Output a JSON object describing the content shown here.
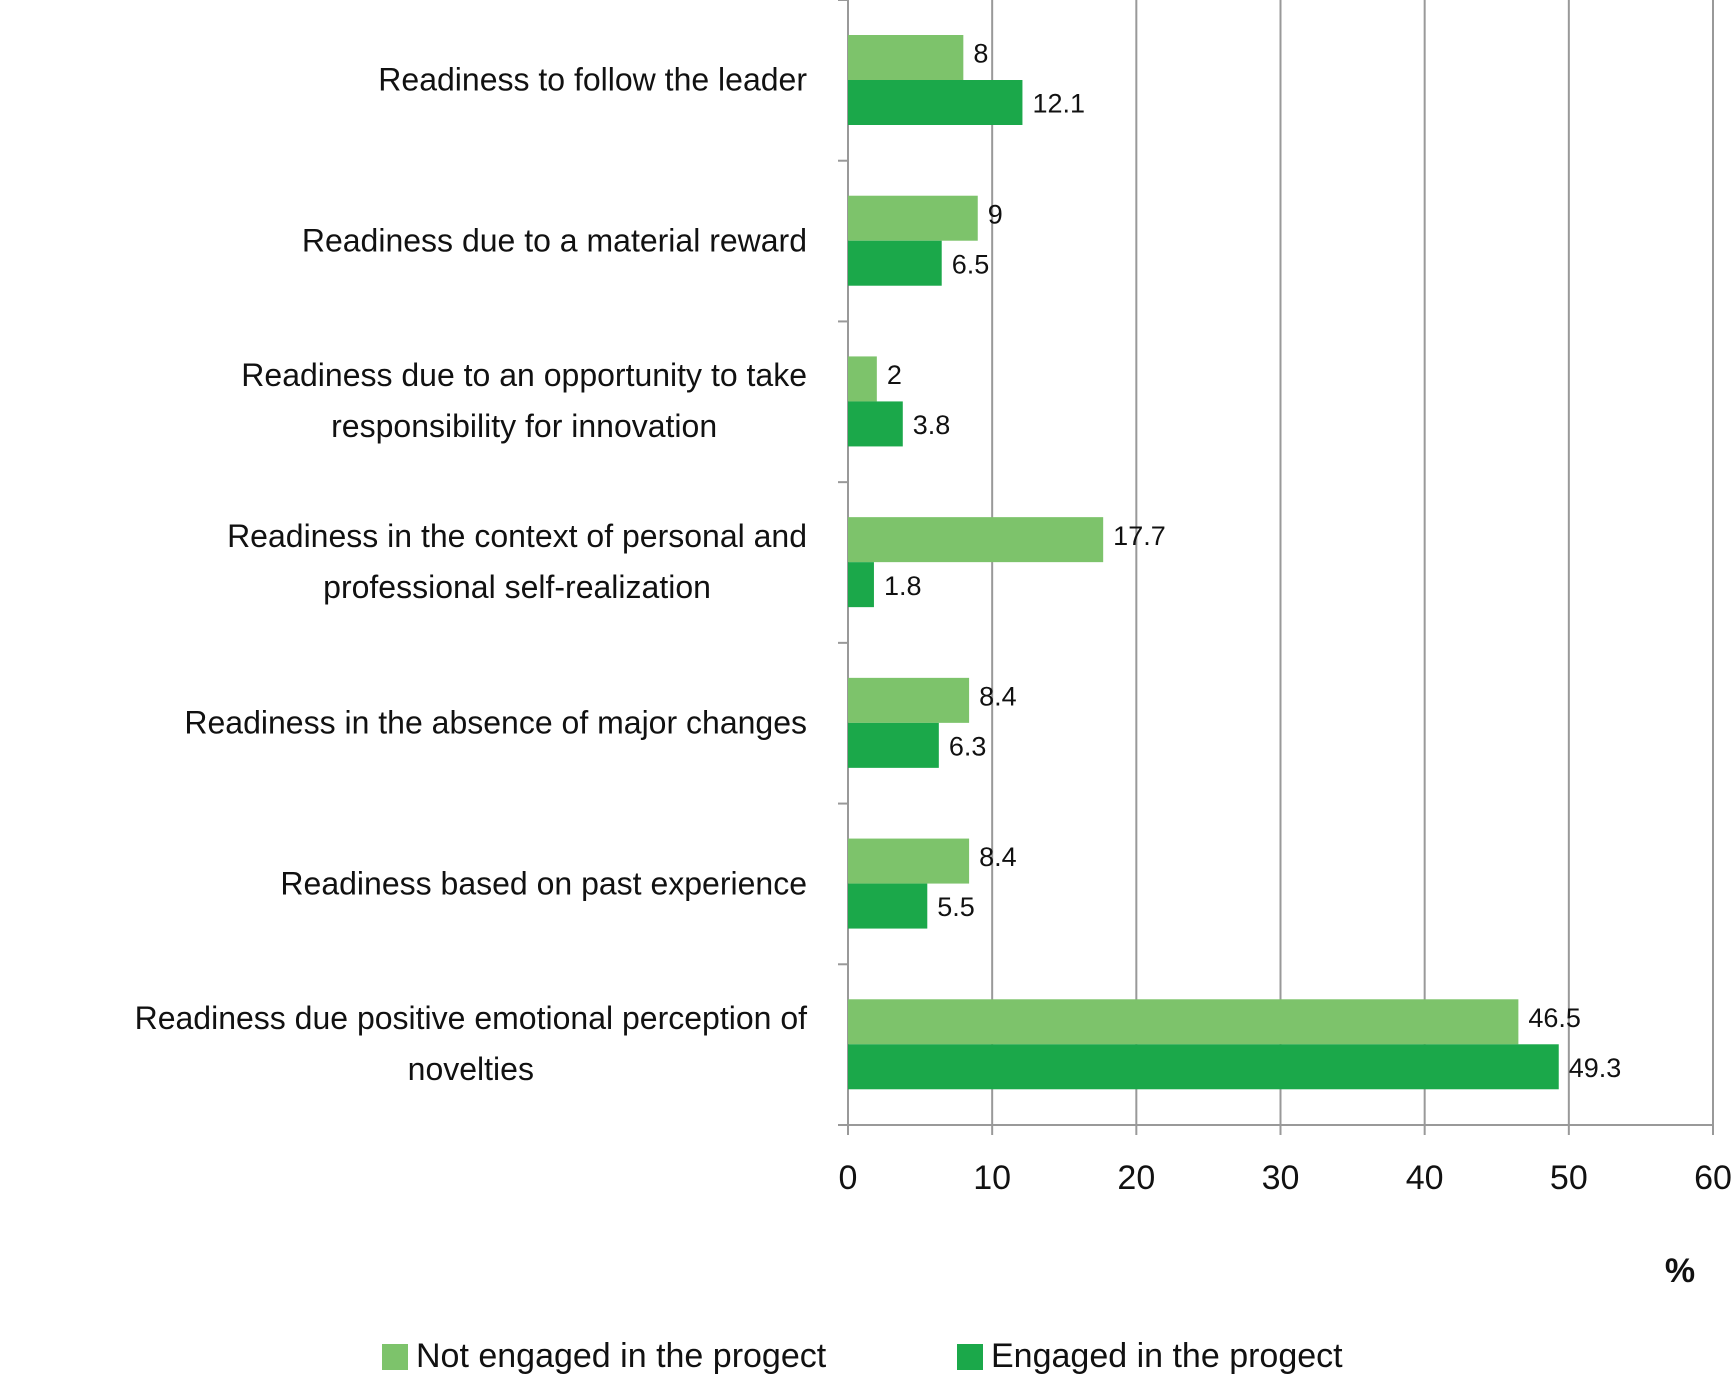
{
  "chart_data": {
    "type": "hbar",
    "categories": [
      "Readiness to follow the leader",
      "Readiness due to a material reward",
      "Readiness due to an opportunity to take\nresponsibility for innovation",
      "Readiness in the context of personal and\nprofessional self-realization",
      "Readiness in the absence of major changes",
      "Readiness based on past experience",
      "Readiness due positive emotional perception of\nnovelties"
    ],
    "series": [
      {
        "name": "Not engaged in the progect",
        "color": "#7dc36b",
        "values": [
          8,
          9,
          2,
          17.7,
          8.4,
          8.4,
          46.5
        ]
      },
      {
        "name": "Engaged in the progect",
        "color": "#1ba84a",
        "values": [
          12.1,
          6.5,
          3.8,
          1.8,
          6.3,
          5.5,
          49.3
        ]
      }
    ],
    "xlabel": "%",
    "xlim": [
      0,
      60
    ],
    "xticks": [
      0,
      10,
      20,
      30,
      40,
      50,
      60
    ],
    "grid": true,
    "legend": "bottom"
  }
}
